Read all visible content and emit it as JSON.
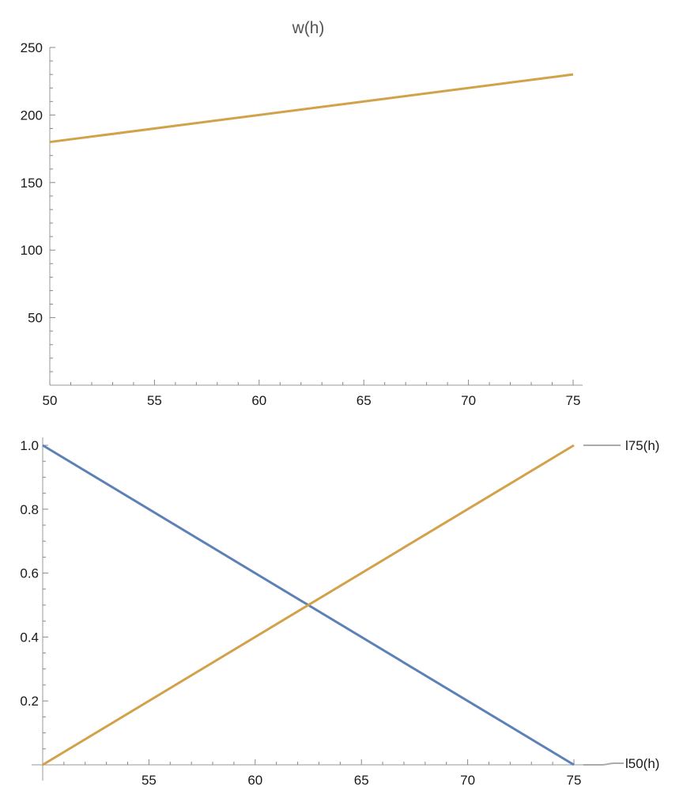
{
  "chart_data": [
    {
      "type": "line",
      "title": "w(h)",
      "xlabel": "",
      "ylabel": "",
      "xlim": [
        50,
        75
      ],
      "ylim": [
        0,
        250
      ],
      "x_ticks": [
        "50",
        "55",
        "60",
        "65",
        "70",
        "75"
      ],
      "y_ticks": [
        "250",
        "200",
        "150",
        "100",
        "50"
      ],
      "grid": false,
      "series": [
        {
          "name": "",
          "color": "#d2a24a",
          "x": [
            50,
            75
          ],
          "y": [
            180,
            230
          ]
        }
      ]
    },
    {
      "type": "line",
      "title": "",
      "xlabel": "",
      "ylabel": "",
      "xlim": [
        50,
        75
      ],
      "ylim": [
        0,
        1.0
      ],
      "x_ticks": [
        "55",
        "60",
        "65",
        "70",
        "75"
      ],
      "y_ticks": [
        "1.0",
        "0.8",
        "0.6",
        "0.4",
        "0.2"
      ],
      "grid": false,
      "legend_placement": "right",
      "series": [
        {
          "name": "l50(h)",
          "color": "#5e81b5",
          "x": [
            50,
            75
          ],
          "y": [
            1.0,
            0.0
          ]
        },
        {
          "name": "l75(h)",
          "color": "#d2a24a",
          "x": [
            50,
            75
          ],
          "y": [
            0.0,
            1.0
          ]
        }
      ]
    }
  ]
}
